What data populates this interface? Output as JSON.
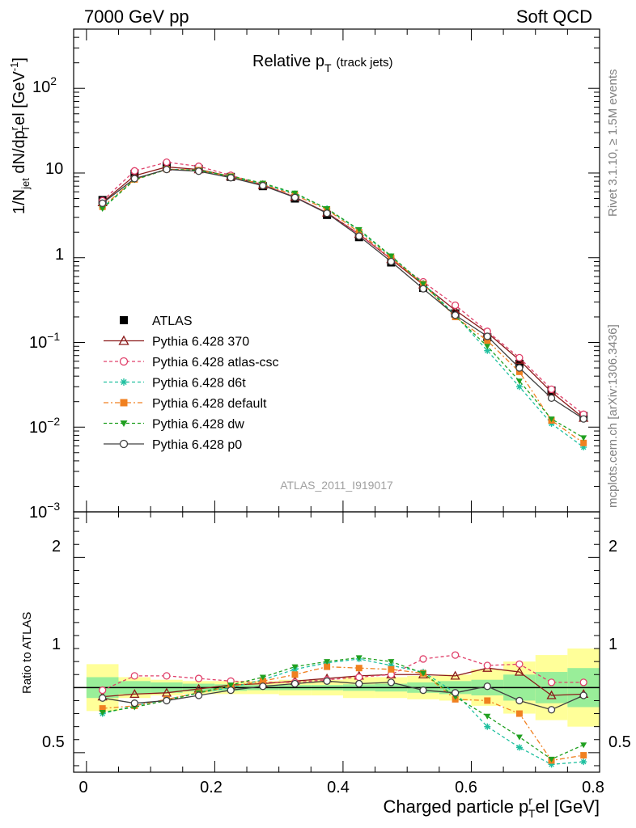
{
  "header": {
    "left": "7000 GeV pp",
    "right": "Soft QCD"
  },
  "side_labels": {
    "upper": "Rivet 3.1.10, ≥ 1.5M events",
    "lower": "mcplots.cern.ch [arXiv:1306.3436]"
  },
  "chart_data": [
    {
      "type": "line",
      "panel": "main",
      "title": "Relative p",
      "title_sub": "T",
      "title_suffix": "(track jets)",
      "analysis_tag": "ATLAS_2011_I919017",
      "ylabel": "1/N",
      "ylabel_parts": {
        "a": "1/N",
        "b": "jet",
        "c": " dN/dp",
        "d": "r",
        "e": "T",
        "f": "el [GeV",
        "g": "-1",
        "h": "]"
      },
      "yscale": "log",
      "ylim": [
        0.001,
        500
      ],
      "xlim": [
        -0.02,
        0.8
      ],
      "ytick_labels": {
        "m3": "10",
        "m3e": "−3",
        "m2": "10",
        "m2e": "−2",
        "m1": "10",
        "m1e": "−1",
        "p0": "1",
        "p1": "10",
        "p2": "10",
        "p2e": "2"
      },
      "x": [
        0.025,
        0.075,
        0.125,
        0.175,
        0.225,
        0.275,
        0.325,
        0.375,
        0.425,
        0.475,
        0.525,
        0.575,
        0.625,
        0.675,
        0.725,
        0.775
      ],
      "legend_position": "center-left",
      "series": [
        {
          "name": "ATLAS",
          "color": "#000000",
          "marker": "square-filled",
          "dash": "none",
          "values": [
            4.8,
            9.8,
            12.2,
            11.2,
            9.0,
            7.0,
            5.0,
            3.2,
            1.75,
            0.88,
            0.44,
            0.22,
            0.115,
            0.056,
            0.027,
            0.0135
          ]
        },
        {
          "name": "Pythia 6.428 370",
          "color": "#8b1a1a",
          "marker": "triangle-open",
          "dash": "solid",
          "values": [
            4.5,
            9.3,
            11.8,
            11.0,
            9.1,
            7.2,
            5.2,
            3.4,
            1.9,
            0.96,
            0.48,
            0.24,
            0.13,
            0.062,
            0.026,
            0.0128
          ]
        },
        {
          "name": "Pythia 6.428 atlas-csc",
          "color": "#e0406a",
          "marker": "circle-open",
          "dash": "4,3",
          "values": [
            4.7,
            10.6,
            13.4,
            12.0,
            9.4,
            7.3,
            5.2,
            3.4,
            1.88,
            0.96,
            0.52,
            0.275,
            0.135,
            0.066,
            0.028,
            0.0142
          ]
        },
        {
          "name": "Pythia 6.428 d6t",
          "color": "#20c0a0",
          "marker": "star",
          "dash": "4,3",
          "values": [
            3.9,
            8.4,
            11.1,
            10.8,
            9.0,
            7.4,
            5.7,
            3.8,
            2.1,
            1.03,
            0.5,
            0.21,
            0.08,
            0.03,
            0.011,
            0.0058
          ]
        },
        {
          "name": "Pythia 6.428 default",
          "color": "#f08020",
          "marker": "square-filled",
          "dash": "6,3,2,3",
          "values": [
            4.0,
            8.4,
            11.1,
            10.8,
            9.1,
            7.3,
            5.5,
            3.7,
            2.0,
            1.0,
            0.49,
            0.2,
            0.105,
            0.045,
            0.012,
            0.0065
          ]
        },
        {
          "name": "Pythia 6.428 dw",
          "color": "#20a020",
          "marker": "triangle-down-filled",
          "dash": "4,3",
          "values": [
            3.8,
            8.3,
            11.0,
            10.8,
            9.2,
            7.6,
            5.8,
            3.8,
            2.15,
            1.05,
            0.49,
            0.205,
            0.09,
            0.035,
            0.0125,
            0.0075
          ]
        },
        {
          "name": "Pythia 6.428 p0",
          "color": "#404040",
          "marker": "circle-open",
          "dash": "solid",
          "values": [
            4.4,
            8.6,
            11.0,
            10.5,
            8.8,
            7.1,
            5.15,
            3.35,
            1.8,
            0.9,
            0.43,
            0.21,
            0.118,
            0.05,
            0.022,
            0.0125
          ]
        }
      ]
    },
    {
      "type": "line",
      "panel": "ratio",
      "xlabel": "Charged particle p",
      "xlabel_sub": "T",
      "xlabel_sup": "r",
      "xlabel_suffix": "el [GeV]",
      "ylabel": "Ratio to ATLAS",
      "ylim": [
        0.35,
        2.35
      ],
      "xlim": [
        -0.02,
        0.8
      ],
      "xtick_labels": [
        "0",
        "0.2",
        "0.4",
        "0.6",
        "0.8"
      ],
      "ytick_labels": [
        "0.5",
        "1",
        "2"
      ],
      "band_inner_halfwidth": [
        0.08,
        0.05,
        0.04,
        0.03,
        0.025,
        0.02,
        0.02,
        0.02,
        0.025,
        0.03,
        0.04,
        0.05,
        0.06,
        0.1,
        0.12,
        0.15
      ],
      "band_outer_halfwidth": [
        0.18,
        0.08,
        0.06,
        0.05,
        0.05,
        0.05,
        0.06,
        0.06,
        0.08,
        0.08,
        0.09,
        0.1,
        0.14,
        0.2,
        0.25,
        0.3
      ],
      "series": [
        {
          "name": "Pythia 6.428 370",
          "values": [
            0.93,
            0.95,
            0.96,
            0.99,
            1.02,
            1.03,
            1.05,
            1.07,
            1.09,
            1.1,
            1.1,
            1.09,
            1.15,
            1.12,
            0.94,
            0.95
          ]
        },
        {
          "name": "Pythia 6.428 atlas-csc",
          "values": [
            0.98,
            1.09,
            1.09,
            1.07,
            1.05,
            1.04,
            1.04,
            1.06,
            1.08,
            1.1,
            1.22,
            1.25,
            1.17,
            1.18,
            1.04,
            1.04
          ]
        },
        {
          "name": "Pythia 6.428 d6t",
          "values": [
            0.8,
            0.86,
            0.91,
            0.96,
            1.0,
            1.06,
            1.14,
            1.19,
            1.22,
            1.17,
            1.12,
            0.96,
            0.7,
            0.54,
            0.41,
            0.43
          ]
        },
        {
          "name": "Pythia 6.428 default",
          "values": [
            0.84,
            0.86,
            0.91,
            0.96,
            1.01,
            1.05,
            1.1,
            1.16,
            1.15,
            1.14,
            1.11,
            0.91,
            0.9,
            0.8,
            0.44,
            0.48
          ]
        },
        {
          "name": "Pythia 6.428 dw",
          "values": [
            0.81,
            0.85,
            0.9,
            0.96,
            1.02,
            1.08,
            1.16,
            1.2,
            1.23,
            1.2,
            1.11,
            0.93,
            0.78,
            0.62,
            0.45,
            0.56
          ]
        },
        {
          "name": "Pythia 6.428 p0",
          "values": [
            0.92,
            0.88,
            0.9,
            0.94,
            0.98,
            1.01,
            1.03,
            1.05,
            1.03,
            1.04,
            0.98,
            0.96,
            1.01,
            0.9,
            0.83,
            0.94
          ]
        }
      ]
    }
  ]
}
